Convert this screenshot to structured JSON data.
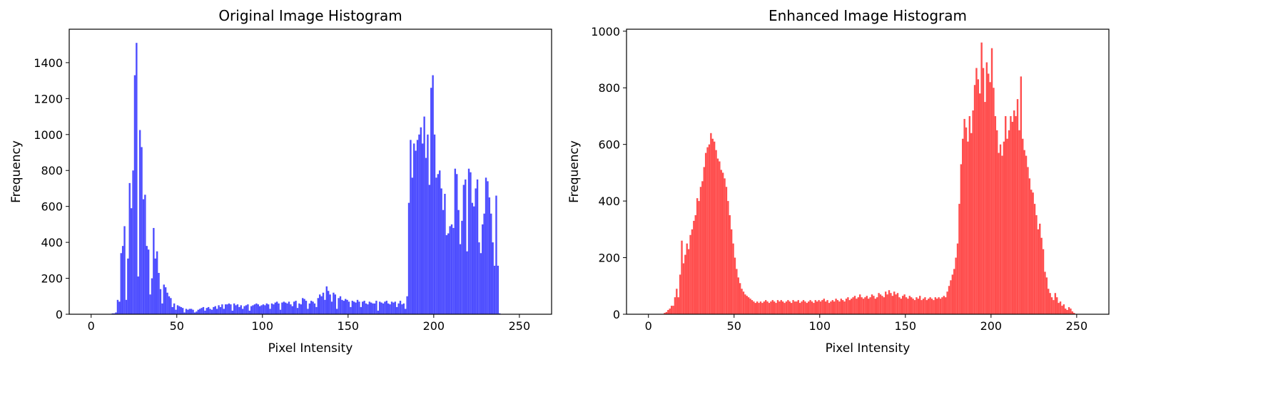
{
  "chart_data": [
    {
      "type": "histogram",
      "title": "Original Image Histogram",
      "xlabel": "Pixel Intensity",
      "ylabel": "Frequency",
      "color": "#4d4dff",
      "bins": [
        0,
        1,
        2,
        3,
        4,
        5,
        6,
        7,
        8,
        9,
        10,
        11,
        12,
        13,
        14,
        15,
        16,
        17,
        18,
        19,
        20,
        21,
        22,
        23,
        24,
        25,
        26,
        27,
        28,
        29,
        30,
        31,
        32,
        33,
        34,
        35,
        36,
        37,
        38,
        39,
        40,
        41,
        42,
        43,
        44,
        45,
        46,
        47,
        48,
        49,
        50,
        51,
        52,
        53,
        54,
        55,
        56,
        57,
        58,
        59,
        60,
        61,
        62,
        63,
        64,
        65,
        66,
        67,
        68,
        69,
        70,
        71,
        72,
        73,
        74,
        75,
        76,
        77,
        78,
        79,
        80,
        81,
        82,
        83,
        84,
        85,
        86,
        87,
        88,
        89,
        90,
        91,
        92,
        93,
        94,
        95,
        96,
        97,
        98,
        99,
        100,
        101,
        102,
        103,
        104,
        105,
        106,
        107,
        108,
        109,
        110,
        111,
        112,
        113,
        114,
        115,
        116,
        117,
        118,
        119,
        120,
        121,
        122,
        123,
        124,
        125,
        126,
        127,
        128,
        129,
        130,
        131,
        132,
        133,
        134,
        135,
        136,
        137,
        138,
        139,
        140,
        141,
        142,
        143,
        144,
        145,
        146,
        147,
        148,
        149,
        150,
        151,
        152,
        153,
        154,
        155,
        156,
        157,
        158,
        159,
        160,
        161,
        162,
        163,
        164,
        165,
        166,
        167,
        168,
        169,
        170,
        171,
        172,
        173,
        174,
        175,
        176,
        177,
        178,
        179,
        180,
        181,
        182,
        183,
        184,
        185,
        186,
        187,
        188,
        189,
        190,
        191,
        192,
        193,
        194,
        195,
        196,
        197,
        198,
        199,
        200,
        201,
        202,
        203,
        204,
        205,
        206,
        207,
        208,
        209,
        210,
        211,
        212,
        213,
        214,
        215,
        216,
        217,
        218,
        219,
        220,
        221,
        222,
        223,
        224,
        225,
        226,
        227,
        228,
        229,
        230,
        231,
        232,
        233,
        234,
        235,
        236,
        237,
        238,
        239,
        240,
        241,
        242,
        243,
        244,
        245,
        246,
        247,
        248,
        249,
        250,
        251,
        252,
        253,
        254,
        255,
        256
      ],
      "values": [
        0,
        0,
        0,
        0,
        0,
        0,
        0,
        0,
        0,
        0,
        0,
        0,
        5,
        5,
        10,
        80,
        70,
        340,
        380,
        490,
        80,
        310,
        730,
        590,
        800,
        1330,
        1510,
        210,
        1025,
        930,
        640,
        665,
        380,
        360,
        110,
        200,
        480,
        310,
        350,
        230,
        140,
        60,
        165,
        150,
        120,
        100,
        90,
        40,
        60,
        25,
        50,
        45,
        40,
        35,
        10,
        30,
        25,
        30,
        30,
        25,
        10,
        15,
        25,
        30,
        35,
        40,
        20,
        35,
        40,
        30,
        25,
        40,
        45,
        30,
        50,
        40,
        55,
        30,
        55,
        55,
        60,
        55,
        20,
        60,
        50,
        55,
        40,
        50,
        30,
        45,
        50,
        55,
        20,
        45,
        50,
        55,
        60,
        55,
        45,
        50,
        55,
        50,
        60,
        55,
        30,
        60,
        55,
        65,
        70,
        60,
        25,
        65,
        70,
        65,
        60,
        70,
        55,
        45,
        70,
        75,
        35,
        60,
        55,
        90,
        85,
        75,
        30,
        60,
        75,
        70,
        60,
        40,
        90,
        110,
        100,
        120,
        80,
        155,
        130,
        110,
        70,
        120,
        110,
        30,
        90,
        100,
        80,
        75,
        85,
        80,
        70,
        40,
        75,
        70,
        65,
        80,
        70,
        40,
        70,
        75,
        60,
        55,
        70,
        65,
        60,
        60,
        75,
        20,
        70,
        65,
        60,
        70,
        75,
        60,
        55,
        70,
        65,
        70,
        40,
        60,
        75,
        55,
        60,
        30,
        100,
        620,
        970,
        760,
        950,
        910,
        970,
        1000,
        1040,
        950,
        1100,
        870,
        1000,
        720,
        1260,
        1330,
        1000,
        760,
        780,
        800,
        700,
        580,
        670,
        440,
        450,
        490,
        500,
        480,
        810,
        780,
        580,
        390,
        520,
        720,
        750,
        350,
        810,
        790,
        620,
        600,
        700,
        750,
        400,
        340,
        500,
        560,
        760,
        740,
        650,
        560,
        400,
        270,
        660,
        270,
        5,
        0,
        0,
        0,
        0,
        0,
        0,
        0,
        0,
        0,
        0,
        0,
        0,
        0,
        0,
        0,
        0,
        0
      ],
      "xlim": [
        -12.8,
        268.8
      ],
      "ylim": [
        0,
        1586
      ],
      "xticks": [
        0,
        50,
        100,
        150,
        200,
        250
      ],
      "yticks": [
        0,
        200,
        400,
        600,
        800,
        1000,
        1200,
        1400
      ]
    },
    {
      "type": "histogram",
      "title": "Enhanced Image Histogram",
      "xlabel": "Pixel Intensity",
      "ylabel": "Frequency",
      "color": "#ff4d4d",
      "bins": [
        0,
        1,
        2,
        3,
        4,
        5,
        6,
        7,
        8,
        9,
        10,
        11,
        12,
        13,
        14,
        15,
        16,
        17,
        18,
        19,
        20,
        21,
        22,
        23,
        24,
        25,
        26,
        27,
        28,
        29,
        30,
        31,
        32,
        33,
        34,
        35,
        36,
        37,
        38,
        39,
        40,
        41,
        42,
        43,
        44,
        45,
        46,
        47,
        48,
        49,
        50,
        51,
        52,
        53,
        54,
        55,
        56,
        57,
        58,
        59,
        60,
        61,
        62,
        63,
        64,
        65,
        66,
        67,
        68,
        69,
        70,
        71,
        72,
        73,
        74,
        75,
        76,
        77,
        78,
        79,
        80,
        81,
        82,
        83,
        84,
        85,
        86,
        87,
        88,
        89,
        90,
        91,
        92,
        93,
        94,
        95,
        96,
        97,
        98,
        99,
        100,
        101,
        102,
        103,
        104,
        105,
        106,
        107,
        108,
        109,
        110,
        111,
        112,
        113,
        114,
        115,
        116,
        117,
        118,
        119,
        120,
        121,
        122,
        123,
        124,
        125,
        126,
        127,
        128,
        129,
        130,
        131,
        132,
        133,
        134,
        135,
        136,
        137,
        138,
        139,
        140,
        141,
        142,
        143,
        144,
        145,
        146,
        147,
        148,
        149,
        150,
        151,
        152,
        153,
        154,
        155,
        156,
        157,
        158,
        159,
        160,
        161,
        162,
        163,
        164,
        165,
        166,
        167,
        168,
        169,
        170,
        171,
        172,
        173,
        174,
        175,
        176,
        177,
        178,
        179,
        180,
        181,
        182,
        183,
        184,
        185,
        186,
        187,
        188,
        189,
        190,
        191,
        192,
        193,
        194,
        195,
        196,
        197,
        198,
        199,
        200,
        201,
        202,
        203,
        204,
        205,
        206,
        207,
        208,
        209,
        210,
        211,
        212,
        213,
        214,
        215,
        216,
        217,
        218,
        219,
        220,
        221,
        222,
        223,
        224,
        225,
        226,
        227,
        228,
        229,
        230,
        231,
        232,
        233,
        234,
        235,
        236,
        237,
        238,
        239,
        240,
        241,
        242,
        243,
        244,
        245,
        246,
        247,
        248,
        249,
        250,
        251,
        252,
        253,
        254,
        255,
        256
      ],
      "values": [
        0,
        0,
        0,
        0,
        0,
        0,
        0,
        0,
        0,
        5,
        8,
        15,
        20,
        30,
        30,
        60,
        90,
        60,
        140,
        260,
        180,
        210,
        250,
        230,
        280,
        300,
        330,
        350,
        410,
        400,
        450,
        470,
        520,
        570,
        590,
        600,
        640,
        620,
        610,
        580,
        550,
        540,
        510,
        500,
        480,
        450,
        400,
        350,
        300,
        250,
        200,
        160,
        130,
        110,
        90,
        80,
        70,
        65,
        60,
        55,
        50,
        45,
        40,
        45,
        40,
        45,
        40,
        45,
        50,
        45,
        40,
        45,
        50,
        45,
        40,
        50,
        45,
        50,
        45,
        40,
        45,
        50,
        45,
        40,
        50,
        45,
        45,
        50,
        40,
        45,
        50,
        45,
        40,
        45,
        50,
        45,
        40,
        50,
        45,
        50,
        45,
        50,
        55,
        45,
        50,
        40,
        45,
        50,
        45,
        55,
        50,
        45,
        55,
        50,
        45,
        55,
        60,
        50,
        55,
        60,
        65,
        55,
        60,
        70,
        60,
        55,
        60,
        65,
        55,
        60,
        70,
        65,
        55,
        60,
        75,
        70,
        65,
        60,
        80,
        70,
        85,
        75,
        65,
        80,
        70,
        75,
        60,
        55,
        65,
        70,
        60,
        55,
        65,
        60,
        55,
        50,
        60,
        55,
        65,
        50,
        55,
        60,
        50,
        55,
        60,
        55,
        50,
        60,
        55,
        60,
        55,
        60,
        65,
        60,
        80,
        100,
        120,
        140,
        160,
        200,
        250,
        390,
        530,
        620,
        690,
        660,
        610,
        700,
        640,
        720,
        810,
        870,
        830,
        780,
        960,
        870,
        750,
        890,
        850,
        820,
        940,
        800,
        700,
        650,
        570,
        600,
        560,
        610,
        700,
        620,
        650,
        700,
        680,
        720,
        700,
        760,
        650,
        840,
        620,
        580,
        560,
        520,
        480,
        440,
        430,
        390,
        350,
        300,
        320,
        270,
        230,
        150,
        130,
        90,
        75,
        60,
        50,
        75,
        60,
        40,
        45,
        30,
        35,
        20,
        15,
        25,
        20,
        10,
        5,
        0,
        0,
        0,
        0,
        0,
        0,
        0
      ],
      "xlim": [
        -12.8,
        268.8
      ],
      "ylim": [
        0,
        1007
      ],
      "xticks": [
        0,
        50,
        100,
        150,
        200,
        250
      ],
      "yticks": [
        0,
        200,
        400,
        600,
        800,
        1000
      ]
    }
  ]
}
